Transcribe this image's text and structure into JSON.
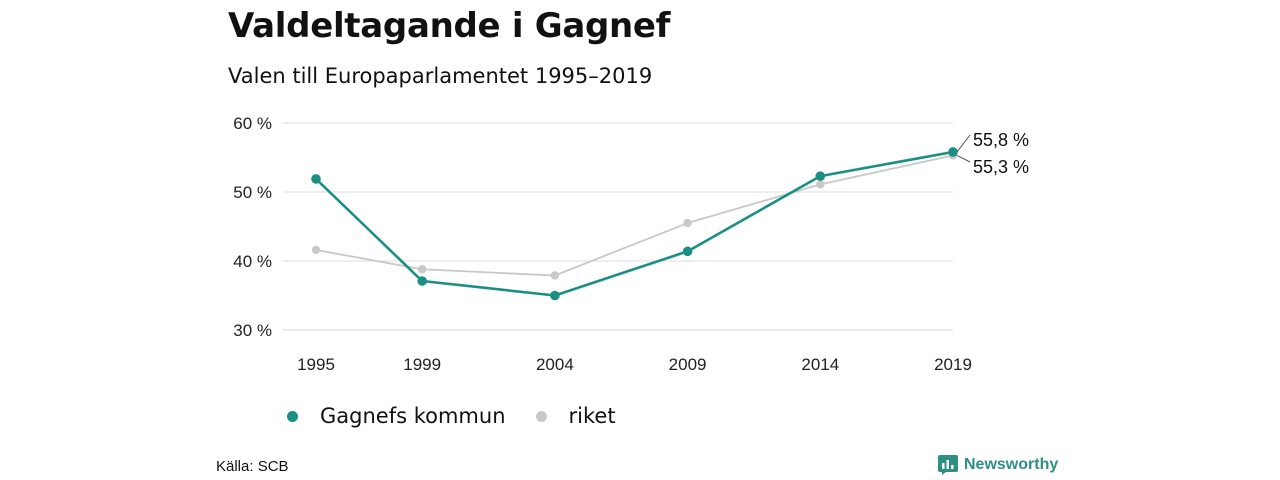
{
  "title": "Valdeltagande i Gagnef",
  "subtitle": "Valen till Europaparlamentet 1995–2019",
  "source": "Källa: SCB",
  "brand": "Newsworthy",
  "colors": {
    "gagnef": "#1a9084",
    "riket": "#c8c8c8",
    "grid": "#dddddd",
    "brand": "#2f8f80"
  },
  "chart_data": {
    "type": "line",
    "categories": [
      "1995",
      "1999",
      "2004",
      "2009",
      "2014",
      "2019"
    ],
    "x": [
      1995,
      1999,
      2004,
      2009,
      2014,
      2019
    ],
    "ylim": [
      30,
      60
    ],
    "yticks": [
      30,
      40,
      50,
      60
    ],
    "ytick_labels": [
      "30 %",
      "40 %",
      "50 %",
      "60 %"
    ],
    "grid": true,
    "legend_placement": "bottom-left",
    "series": [
      {
        "name": "Gagnefs kommun",
        "values": [
          51.9,
          37.1,
          35.0,
          41.4,
          52.3,
          55.8
        ],
        "end_label": "55,8 %"
      },
      {
        "name": "riket",
        "values": [
          41.6,
          38.8,
          37.9,
          45.5,
          51.1,
          55.3
        ],
        "end_label": "55,3 %"
      }
    ]
  }
}
